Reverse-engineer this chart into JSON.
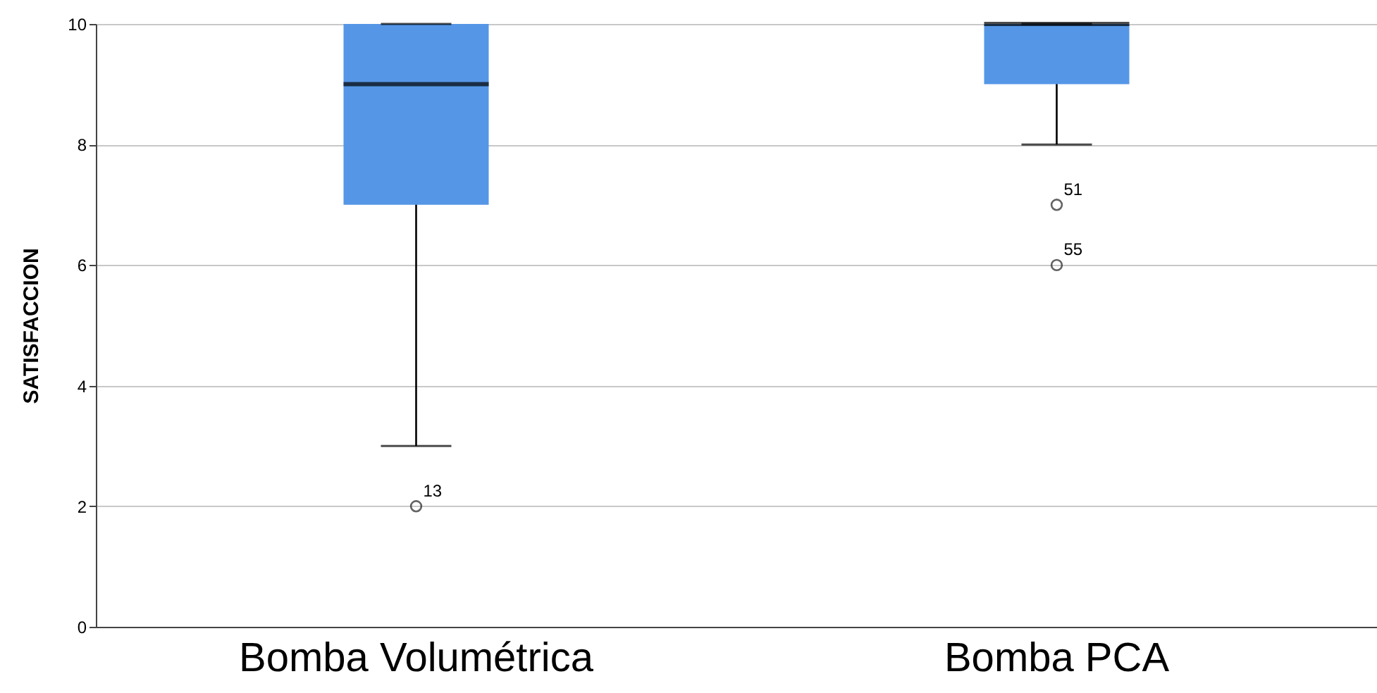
{
  "chart_data": {
    "type": "box",
    "ylabel": "SATISFACCION",
    "categories": [
      "Bomba Volumétrica",
      "Bomba PCA"
    ],
    "series": [
      {
        "color": "#5596e6",
        "boxes": [
          {
            "low": 3,
            "q1": 7,
            "median": 9,
            "q3": 10,
            "high": 10,
            "outliers": [
              2
            ]
          },
          {
            "low": 8,
            "q1": 9,
            "median": 10,
            "q3": 10,
            "high": 10,
            "outliers": [
              7,
              6
            ]
          }
        ]
      }
    ],
    "ylim": [
      0,
      10
    ],
    "yticks": [
      0,
      2,
      4,
      6,
      8,
      10
    ],
    "grid": "y",
    "annotations": [
      "13",
      "51",
      "55"
    ]
  }
}
